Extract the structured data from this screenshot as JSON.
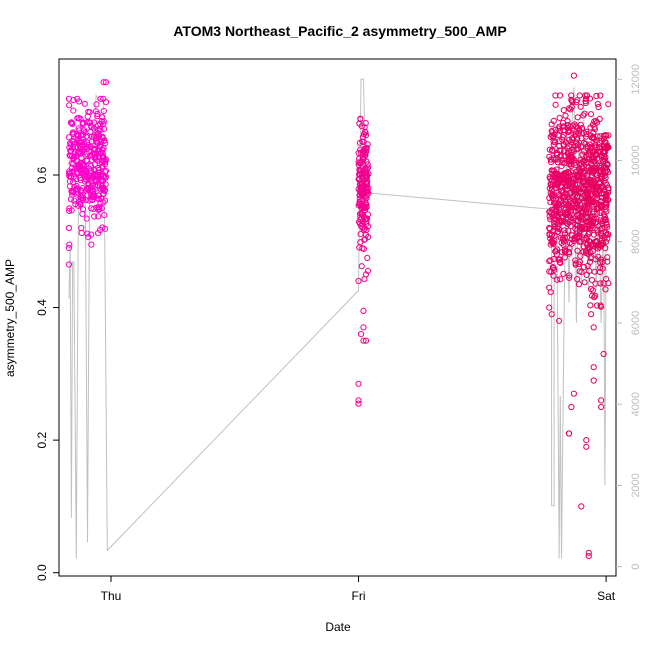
{
  "chart_data": {
    "type": "scatter",
    "title": "ATOM3 Northeast_Pacific_2 asymmetry_500_AMP",
    "xlabel": "Date",
    "ylabel": "asymmetry_500_AMP",
    "x_ticks": [
      "Thu",
      "Fri",
      "Sat"
    ],
    "x_range_days": [
      -0.21,
      2.04
    ],
    "y_left": {
      "range": [
        -0.005,
        0.775
      ],
      "ticks": [
        0.0,
        0.2,
        0.4,
        0.6
      ],
      "tick_labels": [
        "0.0",
        "0.2",
        "0.4",
        "0.6"
      ]
    },
    "y_right": {
      "range": [
        -230,
        12500
      ],
      "ticks": [
        0,
        2000,
        4000,
        6000,
        8000,
        10000,
        12000
      ],
      "tick_labels": [
        "0",
        "2000",
        "4000",
        "6000",
        "8000",
        "10000",
        "12000"
      ]
    },
    "grid": false,
    "series": [
      {
        "kind": "points",
        "color_start": "#ff00cc",
        "color_end": "#e6005c",
        "clusters": [
          {
            "day_start": -0.17,
            "day_end": -0.02,
            "y_center": 0.615,
            "y_spread": 0.05,
            "count": 360,
            "outliers": [
              [
                -0.17,
                0.52
              ],
              [
                -0.17,
                0.49
              ],
              [
                -0.17,
                0.465
              ],
              [
                -0.02,
                0.74
              ],
              [
                -0.03,
                0.74
              ],
              [
                -0.02,
                0.71
              ],
              [
                -0.12,
                0.52
              ],
              [
                -0.08,
                0.51
              ],
              [
                -0.09,
                0.68
              ]
            ]
          },
          {
            "day_start": 1.0,
            "day_end": 1.04,
            "y_center": 0.575,
            "y_spread": 0.055,
            "count": 170,
            "outliers": [
              [
                1.0,
                0.26
              ],
              [
                1.0,
                0.255
              ],
              [
                1.0,
                0.285
              ],
              [
                1.01,
                0.36
              ],
              [
                1.02,
                0.35
              ],
              [
                1.03,
                0.35
              ],
              [
                1.02,
                0.37
              ],
              [
                1.02,
                0.395
              ],
              [
                1.0,
                0.44
              ],
              [
                1.03,
                0.45
              ],
              [
                1.03,
                0.66
              ]
            ]
          },
          {
            "day_start": 1.77,
            "day_end": 2.01,
            "y_center": 0.57,
            "y_spread": 0.075,
            "count": 900,
            "outliers": [
              [
                1.77,
                0.4
              ],
              [
                1.77,
                0.43
              ],
              [
                1.77,
                0.47
              ],
              [
                1.77,
                0.52
              ],
              [
                1.85,
                0.21
              ],
              [
                1.85,
                0.21
              ],
              [
                1.86,
                0.25
              ],
              [
                1.92,
                0.2
              ],
              [
                1.92,
                0.19
              ],
              [
                1.95,
                0.29
              ],
              [
                1.95,
                0.31
              ],
              [
                1.9,
                0.1
              ],
              [
                1.93,
                0.025
              ],
              [
                1.93,
                0.03
              ],
              [
                1.87,
                0.75
              ],
              [
                1.88,
                0.71
              ],
              [
                1.98,
                0.26
              ],
              [
                1.98,
                0.25
              ],
              [
                1.99,
                0.33
              ],
              [
                1.87,
                0.27
              ],
              [
                1.81,
                0.38
              ],
              [
                1.95,
                0.37
              ]
            ]
          }
        ]
      },
      {
        "kind": "line",
        "color": "#c0c0c0",
        "axis": "right",
        "points": [
          [
            -0.17,
            6600
          ],
          [
            -0.165,
            7900
          ],
          [
            -0.16,
            1200
          ],
          [
            -0.155,
            7500
          ],
          [
            -0.15,
            7500
          ],
          [
            -0.14,
            200
          ],
          [
            -0.13,
            10500
          ],
          [
            -0.12,
            10800
          ],
          [
            -0.115,
            9800
          ],
          [
            -0.105,
            10400
          ],
          [
            -0.095,
            600
          ],
          [
            -0.085,
            10600
          ],
          [
            -0.07,
            10300
          ],
          [
            -0.06,
            11600
          ],
          [
            -0.05,
            11500
          ],
          [
            -0.03,
            11500
          ],
          [
            -0.015,
            400
          ],
          [
            1.0,
            6800
          ],
          [
            1.01,
            12000
          ],
          [
            1.02,
            12000
          ],
          [
            1.03,
            9200
          ],
          [
            1.04,
            9200
          ],
          [
            1.04,
            9200
          ],
          [
            1.78,
            8800
          ],
          [
            1.78,
            1500
          ],
          [
            1.79,
            1500
          ],
          [
            1.79,
            9600
          ],
          [
            1.8,
            9600
          ],
          [
            1.81,
            200
          ],
          [
            1.815,
            4200
          ],
          [
            1.82,
            200
          ],
          [
            1.83,
            6000
          ],
          [
            1.84,
            10600
          ],
          [
            1.85,
            6500
          ],
          [
            1.86,
            10700
          ],
          [
            1.87,
            11800
          ],
          [
            1.88,
            6000
          ],
          [
            1.89,
            11000
          ],
          [
            1.9,
            7000
          ],
          [
            1.91,
            11000
          ],
          [
            1.92,
            9000
          ],
          [
            1.93,
            6800
          ],
          [
            1.94,
            10600
          ],
          [
            1.95,
            10000
          ],
          [
            1.96,
            6800
          ],
          [
            1.97,
            9000
          ],
          [
            1.98,
            6000
          ],
          [
            1.99,
            9000
          ],
          [
            1.995,
            2000
          ],
          [
            2.0,
            8000
          ]
        ]
      }
    ]
  }
}
